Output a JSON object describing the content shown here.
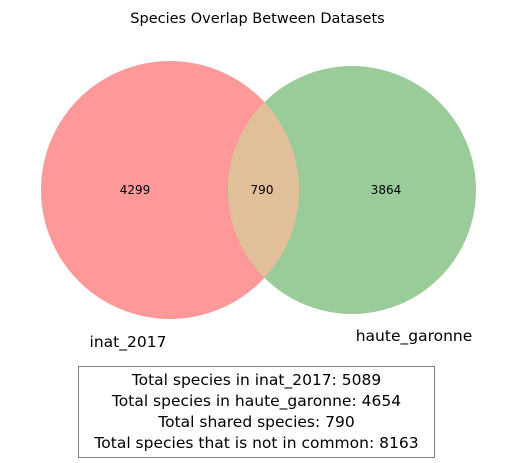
{
  "title": "Species Overlap Between Datasets",
  "sets": {
    "left": {
      "name": "inat_2017",
      "only_count": "4299",
      "color": "#ff9999"
    },
    "right": {
      "name": "haute_garonne",
      "only_count": "3864",
      "color": "#99cc99"
    },
    "intersection": {
      "count": "790",
      "color": "#e0bf99"
    }
  },
  "summary": {
    "lines": [
      "Total species in inat_2017: 5089",
      "Total species in haute_garonne: 4654",
      "Total shared species: 790",
      "Total species that is not in common: 8163"
    ]
  }
}
